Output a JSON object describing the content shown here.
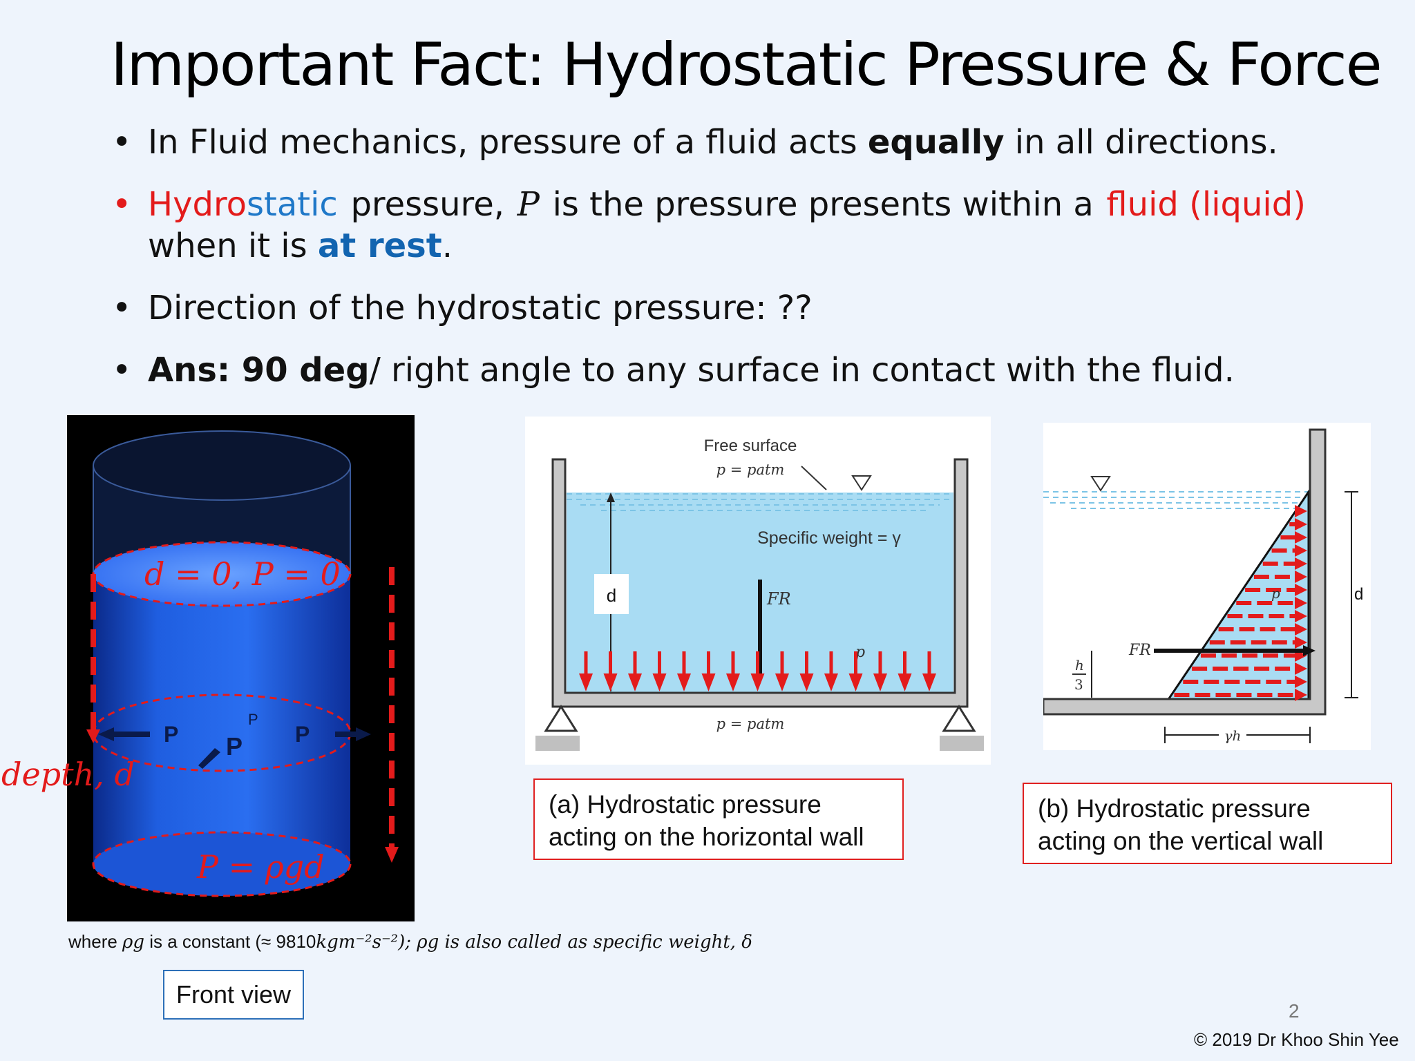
{
  "title": "Important Fact: Hydrostatic Pressure & Force",
  "bullets": {
    "b1_pre": "In Fluid mechanics, pressure of a fluid acts ",
    "b1_bold": "equally",
    "b1_post": " in all directions.",
    "b2_hydro": "Hydro",
    "b2_static": "static",
    "b2_pressure": "pressure,",
    "b2_P": "P",
    "b2_mid": "is the pressure presents within a",
    "b2_fluid": "fluid (liquid)",
    "b2_line2_pre": "when it is ",
    "b2_atrest": "at rest",
    "b2_period": ".",
    "b3": "Direction of the hydrostatic pressure: ??",
    "b4_bold": "Ans: 90 deg",
    "b4_rest": "/ right angle to any surface in contact with the fluid.",
    "bullet_char": "•"
  },
  "cylinder": {
    "top_label": "d = 0, P = 0",
    "bottom_label": "P = ρgd",
    "depth_label": "depth, d",
    "p_label": "P"
  },
  "where_note": {
    "pre": "where ",
    "rho_g": "ρg",
    "mid": " is a constant (≈ 9810",
    "units": "kgm⁻²s⁻²",
    "post": "); ρg is also called as specific weight, δ"
  },
  "front_view": "Front view",
  "panel_a": {
    "free_surface": "Free surface",
    "p_atm_top": "p = patm",
    "specific_weight": "Specific weight = γ",
    "d": "d",
    "fr": "FR",
    "p": "p",
    "p_atm_bottom": "p = patm",
    "caption_line1": "(a) Hydrostatic pressure",
    "caption_line2": "acting on the horizontal wall"
  },
  "panel_b": {
    "d": "d",
    "p": "p",
    "fr": "FR",
    "h_over_3_num": "h",
    "h_over_3_den": "3",
    "gamma_h": "γh",
    "caption_line1": "(b) Hydrostatic pressure",
    "caption_line2": "acting on the vertical wall"
  },
  "page_number": "2",
  "copyright": "© 2019 Dr Khoo Shin Yee",
  "colors": {
    "accent_red": "#e31b1b",
    "accent_blue": "#1f78c8",
    "water": "#a9dcf3",
    "cylinder": "#1e5fe0"
  }
}
